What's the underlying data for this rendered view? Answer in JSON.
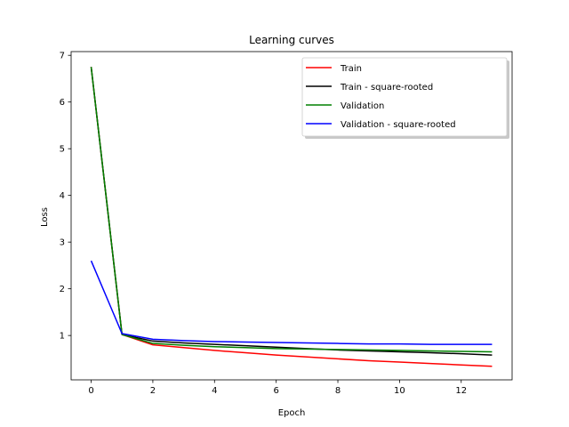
{
  "chart_data": {
    "type": "line",
    "title": "Learning curves",
    "xlabel": "Epoch",
    "ylabel": "Loss",
    "xlim": [
      -0.65,
      13.65
    ],
    "ylim": [
      0.05,
      7.08
    ],
    "xticks": [
      0,
      2,
      4,
      6,
      8,
      10,
      12
    ],
    "yticks": [
      1,
      2,
      3,
      4,
      5,
      6,
      7
    ],
    "grid": false,
    "legend_position": "upper-right",
    "x": [
      0,
      1,
      2,
      3,
      4,
      5,
      6,
      7,
      8,
      9,
      10,
      11,
      12,
      13
    ],
    "series": [
      {
        "name": "Train",
        "color": "#ff0000",
        "values": [
          6.75,
          1.02,
          0.8,
          0.74,
          0.68,
          0.63,
          0.58,
          0.54,
          0.5,
          0.46,
          0.43,
          0.4,
          0.37,
          0.34
        ]
      },
      {
        "name": "Train - square-rooted",
        "color": "#000000",
        "values": [
          6.75,
          1.02,
          0.88,
          0.84,
          0.81,
          0.78,
          0.75,
          0.72,
          0.69,
          0.67,
          0.65,
          0.63,
          0.61,
          0.58
        ]
      },
      {
        "name": "Validation",
        "color": "#008000",
        "values": [
          6.75,
          1.02,
          0.83,
          0.79,
          0.76,
          0.74,
          0.72,
          0.71,
          0.7,
          0.69,
          0.68,
          0.67,
          0.66,
          0.65
        ]
      },
      {
        "name": "Validation - square-rooted",
        "color": "#0000ff",
        "values": [
          2.6,
          1.04,
          0.92,
          0.89,
          0.87,
          0.86,
          0.85,
          0.84,
          0.83,
          0.82,
          0.82,
          0.81,
          0.81,
          0.81
        ]
      }
    ]
  }
}
